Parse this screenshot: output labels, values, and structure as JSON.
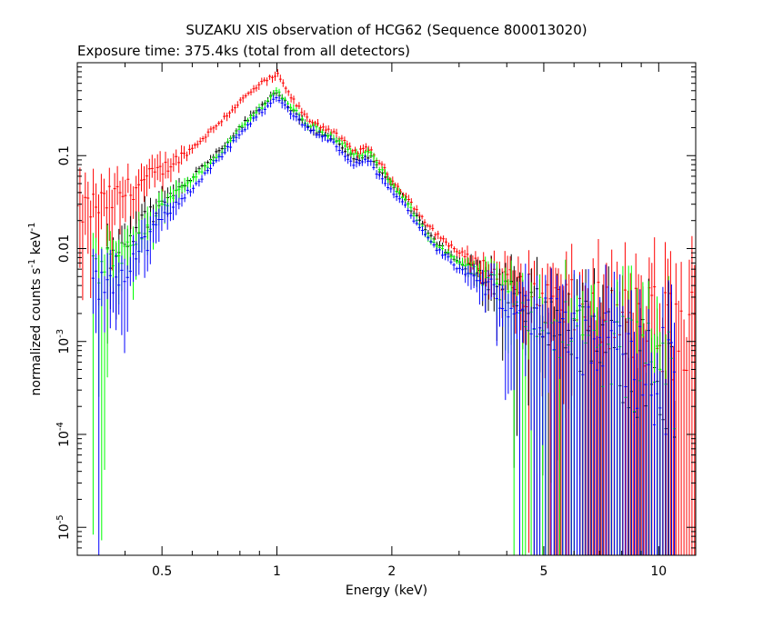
{
  "chart_data": {
    "type": "scatter",
    "title": "SUZAKU XIS observation of HCG62 (Sequence 800013020)",
    "subtitle": "Exposure time: 375.4ks (total from all detectors)",
    "xlabel": "Energy (keV)",
    "ylabel_base": "normalized counts s",
    "ylabel_sup1": "-1",
    "ylabel_mid": " keV",
    "ylabel_sup2": "-1",
    "x_scale": "log",
    "y_scale": "log",
    "xlim": [
      0.3,
      12.5
    ],
    "ylim": [
      5e-06,
      1.0
    ],
    "grid": false,
    "x_ticks": [
      {
        "value": 0.5,
        "label": "0.5"
      },
      {
        "value": 1,
        "label": "1"
      },
      {
        "value": 2,
        "label": "2"
      },
      {
        "value": 5,
        "label": "5"
      },
      {
        "value": 10,
        "label": "10"
      }
    ],
    "y_ticks": [
      {
        "value": 0.1,
        "label": "0.1"
      },
      {
        "value": 0.01,
        "label": "0.01"
      },
      {
        "value": 0.001,
        "base": "10",
        "exp": "-3"
      },
      {
        "value": 0.0001,
        "base": "10",
        "exp": "-4"
      },
      {
        "value": 1e-05,
        "base": "10",
        "exp": "-5"
      }
    ],
    "model": {
      "E": [
        0.3,
        0.35,
        0.4,
        0.5,
        0.6,
        0.7,
        0.8,
        0.9,
        1.0,
        1.1,
        1.2,
        1.4,
        1.6,
        1.75,
        1.85,
        2.0,
        2.2,
        2.5,
        3.0,
        4.0,
        5.0,
        6.0,
        7.0,
        8.0,
        10.0,
        12.5
      ],
      "black": [
        0.006,
        0.008,
        0.012,
        0.03,
        0.06,
        0.11,
        0.2,
        0.33,
        0.5,
        0.3,
        0.2,
        0.15,
        0.09,
        0.1,
        0.07,
        0.05,
        0.03,
        0.014,
        0.007,
        0.0035,
        0.0019,
        0.0013,
        0.0009,
        0.0007,
        0.0004,
        0.0002
      ],
      "red": [
        0.025,
        0.03,
        0.04,
        0.07,
        0.12,
        0.22,
        0.38,
        0.58,
        0.75,
        0.4,
        0.25,
        0.18,
        0.11,
        0.12,
        0.085,
        0.055,
        0.035,
        0.017,
        0.009,
        0.0045,
        0.0028,
        0.0022,
        0.0018,
        0.0016,
        0.0013,
        0.001
      ],
      "green": [
        0.005,
        0.006,
        0.01,
        0.028,
        0.055,
        0.1,
        0.19,
        0.32,
        0.5,
        0.32,
        0.22,
        0.16,
        0.1,
        0.11,
        0.075,
        0.05,
        0.03,
        0.013,
        0.007,
        0.0032,
        0.0017,
        0.0012,
        0.0009,
        0.0007,
        0.0005,
        0.0003
      ],
      "blue": [
        0.003,
        0.004,
        0.006,
        0.02,
        0.045,
        0.09,
        0.17,
        0.29,
        0.42,
        0.28,
        0.2,
        0.14,
        0.08,
        0.09,
        0.06,
        0.042,
        0.026,
        0.012,
        0.006,
        0.0028,
        0.0016,
        0.0011,
        0.0008,
        0.0006,
        0.0004,
        0.0002
      ]
    },
    "series": [
      {
        "color": "#ff0000",
        "key": "red",
        "emin": 0.3,
        "emax": 12.5,
        "step": 0.007,
        "scatter_low": 0.9,
        "scatter_high": 1.5
      },
      {
        "color": "#000000",
        "key": "black",
        "emin": 0.36,
        "emax": 11.0,
        "step": 0.0075,
        "scatter_low": 1.0,
        "scatter_high": 1.8
      },
      {
        "color": "#00ff00",
        "key": "green",
        "emin": 0.33,
        "emax": 11.0,
        "step": 0.0075,
        "scatter_low": 1.0,
        "scatter_high": 1.8
      },
      {
        "color": "#0000ff",
        "key": "blue",
        "emin": 0.33,
        "emax": 11.0,
        "step": 0.0075,
        "scatter_low": 1.0,
        "scatter_high": 1.8
      }
    ]
  }
}
